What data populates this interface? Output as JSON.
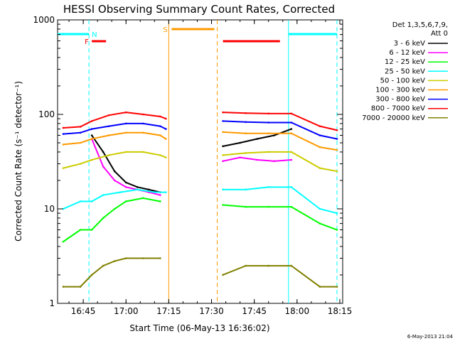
{
  "chart_data": {
    "type": "line",
    "title": "HESSI Observing Summary Count Rates, Corrected",
    "xlabel": "Start Time (06-May-13 16:36:02)",
    "ylabel": "Corrected Count Rate (s⁻¹ detector⁻¹)",
    "xlim": [
      "16:36",
      "18:16"
    ],
    "ylim": [
      1,
      1000
    ],
    "yscale": "log",
    "x_ticks": [
      "16:45",
      "17:00",
      "17:15",
      "17:30",
      "17:45",
      "18:00",
      "18:15"
    ],
    "y_ticks": [
      "1",
      "10",
      "100",
      "1000"
    ],
    "legend_header": [
      "Det 1,3,5,6,7,9,",
      "Att 0"
    ],
    "series": [
      {
        "name": "3 - 6 keV",
        "color": "#000000",
        "x": [
          "16:48",
          "16:52",
          "16:56",
          "17:00",
          "17:04",
          "17:08",
          "17:12",
          "17:34",
          "17:40",
          "17:46",
          "17:52",
          "17:58"
        ],
        "values": [
          60,
          40,
          25,
          19,
          17,
          16,
          15,
          46,
          50,
          55,
          60,
          70
        ]
      },
      {
        "name": "6 - 12 keV",
        "color": "#ff00ff",
        "x": [
          "16:48",
          "16:52",
          "16:56",
          "17:00",
          "17:04",
          "17:08",
          "17:12",
          "17:34",
          "17:40",
          "17:46",
          "17:52",
          "17:58"
        ],
        "values": [
          55,
          28,
          20,
          17,
          16,
          15,
          14,
          32,
          35,
          33,
          32,
          33
        ]
      },
      {
        "name": "12 - 25 keV",
        "color": "#00ff00",
        "x": [
          "16:38",
          "16:44",
          "16:48",
          "16:52",
          "16:56",
          "17:00",
          "17:06",
          "17:12",
          "17:34",
          "17:42",
          "17:50",
          "17:58",
          "18:08",
          "18:14"
        ],
        "values": [
          4.5,
          6,
          6,
          8,
          10,
          12,
          13,
          12,
          11,
          10.5,
          10.5,
          10.5,
          7,
          6
        ]
      },
      {
        "name": "25 - 50 keV",
        "color": "#00ffff",
        "x": [
          "16:38",
          "16:44",
          "16:48",
          "16:52",
          "16:58",
          "17:04",
          "17:10",
          "17:14",
          "17:34",
          "17:42",
          "17:50",
          "17:58",
          "18:08",
          "18:14"
        ],
        "values": [
          10,
          12,
          12,
          14,
          15,
          16,
          15,
          15,
          16,
          16,
          17,
          17,
          10,
          9
        ]
      },
      {
        "name": "50 - 100 keV",
        "color": "#cccc00",
        "x": [
          "16:38",
          "16:44",
          "16:48",
          "16:54",
          "17:00",
          "17:06",
          "17:12",
          "17:14",
          "17:34",
          "17:42",
          "17:50",
          "17:58",
          "18:08",
          "18:14"
        ],
        "values": [
          27,
          30,
          33,
          37,
          40,
          40,
          37,
          35,
          37,
          39,
          40,
          40,
          27,
          25
        ]
      },
      {
        "name": "100 - 300 keV",
        "color": "#ff9900",
        "x": [
          "16:38",
          "16:44",
          "16:48",
          "16:54",
          "17:00",
          "17:06",
          "17:12",
          "17:14",
          "17:34",
          "17:42",
          "17:50",
          "17:58",
          "18:08",
          "18:14"
        ],
        "values": [
          48,
          50,
          55,
          60,
          64,
          64,
          60,
          55,
          65,
          63,
          63,
          63,
          45,
          42
        ]
      },
      {
        "name": "300 - 800 keV",
        "color": "#0000ff",
        "x": [
          "16:38",
          "16:44",
          "16:48",
          "16:54",
          "17:00",
          "17:06",
          "17:12",
          "17:14",
          "17:34",
          "17:42",
          "17:50",
          "17:58",
          "18:08",
          "18:14"
        ],
        "values": [
          62,
          64,
          70,
          75,
          80,
          80,
          75,
          70,
          85,
          83,
          82,
          82,
          60,
          55
        ]
      },
      {
        "name": "800 - 7000 keV",
        "color": "#ff0000",
        "x": [
          "16:38",
          "16:44",
          "16:48",
          "16:54",
          "17:00",
          "17:06",
          "17:12",
          "17:14",
          "17:34",
          "17:42",
          "17:50",
          "17:58",
          "18:08",
          "18:14"
        ],
        "values": [
          72,
          74,
          85,
          98,
          105,
          100,
          95,
          90,
          105,
          103,
          102,
          102,
          75,
          68
        ]
      },
      {
        "name": "7000 - 20000 keV",
        "color": "#808000",
        "x": [
          "16:38",
          "16:44",
          "16:48",
          "16:52",
          "16:56",
          "17:00",
          "17:06",
          "17:12",
          "17:34",
          "17:42",
          "17:50",
          "17:58",
          "18:08",
          "18:14"
        ],
        "values": [
          1.5,
          1.5,
          2,
          2.5,
          2.8,
          3,
          3,
          3,
          2,
          2.5,
          2.5,
          2.5,
          1.5,
          1.5
        ]
      }
    ],
    "annotations": [
      {
        "label": "F",
        "color": "#ff0000",
        "segments": [
          [
            "16:48",
            "16:53"
          ],
          [
            "17:34",
            "17:54"
          ]
        ]
      },
      {
        "label": "N",
        "color": "#00ffff",
        "segments": [
          [
            "16:36",
            "16:47"
          ],
          [
            "17:57",
            "18:14"
          ]
        ]
      },
      {
        "label": "S",
        "color": "#ff9900",
        "segments": [
          [
            "17:16",
            "17:31"
          ]
        ]
      }
    ],
    "vertical_markers": [
      {
        "x": "16:47",
        "color": "#00ffff",
        "style": "dashed"
      },
      {
        "x": "17:15",
        "color": "#ff9900",
        "style": "solid"
      },
      {
        "x": "17:32",
        "color": "#ff9900",
        "style": "dashed"
      },
      {
        "x": "17:57",
        "color": "#00ffff",
        "style": "solid"
      },
      {
        "x": "18:14",
        "color": "#00ffff",
        "style": "dashed"
      }
    ],
    "footer_date": "6-May-2013 21:04",
    "grid": false,
    "legend_position": "right"
  }
}
